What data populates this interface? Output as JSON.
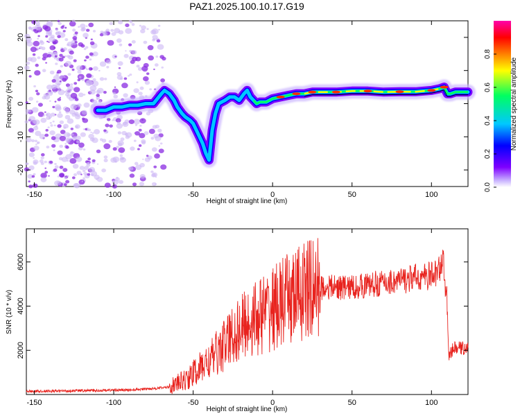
{
  "title": "PAZ1.2025.100.10.17.G19",
  "chart_data": [
    {
      "type": "heatmap",
      "xlabel": "Height of straight line (km)",
      "ylabel": "Frequency (Hz)",
      "xlim": [
        -155,
        123
      ],
      "ylim": [
        -25,
        25
      ],
      "xticks": [
        -150,
        -100,
        -50,
        0,
        50,
        100
      ],
      "yticks": [
        -20,
        -10,
        0,
        10,
        20
      ],
      "colorbar": {
        "label": "Normalized spectral amplitude",
        "range": [
          0,
          1
        ],
        "ticks": [
          0.0,
          0.2,
          0.4,
          0.6,
          0.8
        ],
        "colormap": [
          "#c9b3ff",
          "#7f00ff",
          "#0000ff",
          "#00c8ff",
          "#00ff60",
          "#ffff00",
          "#ff8000",
          "#ff0000",
          "#ff00aa"
        ]
      },
      "ridge": {
        "x": [
          -110,
          -105,
          -100,
          -95,
          -90,
          -85,
          -80,
          -75,
          -70,
          -68,
          -65,
          -62,
          -60,
          -57,
          -55,
          -52,
          -50,
          -48,
          -46,
          -44,
          -42,
          -40,
          -38,
          -36,
          -34,
          -32,
          -30,
          -27,
          -24,
          -21,
          -18,
          -16,
          -14,
          -12,
          -10,
          -8,
          -6,
          -4,
          -2,
          0,
          5,
          10,
          15,
          20,
          25,
          30,
          40,
          50,
          60,
          70,
          80,
          90,
          100,
          105,
          108,
          110,
          112,
          115,
          123
        ],
        "y": [
          -2,
          -2,
          -1,
          -1,
          -0.5,
          -0.5,
          0,
          0,
          3,
          4,
          3,
          1,
          -1,
          -3,
          -4,
          -5,
          -6,
          -8,
          -10,
          -12,
          -15,
          -17,
          -8,
          -3,
          0,
          0.5,
          1,
          2,
          2,
          1,
          3,
          4,
          2,
          1,
          0,
          0.5,
          0.5,
          0.5,
          1,
          1.5,
          2,
          2.5,
          3,
          3,
          3.5,
          3.5,
          3.5,
          3.8,
          3.8,
          3.5,
          3.6,
          3.6,
          4,
          4.5,
          5,
          3,
          3,
          3.5,
          3.5
        ]
      }
    },
    {
      "type": "line",
      "xlabel": "Height of straight line (km)",
      "ylabel": "SNR (10 * v/v)",
      "xlim": [
        -155,
        123
      ],
      "ylim": [
        0,
        7500
      ],
      "xticks": [
        -150,
        -100,
        -50,
        0,
        50,
        100
      ],
      "yticks": [
        2000,
        4000,
        6000
      ],
      "series": [
        {
          "color": "#e8231e",
          "x": [
            -155,
            -140,
            -125,
            -110,
            -100,
            -90,
            -80,
            -70,
            -65,
            -60,
            -55,
            -52,
            -50,
            -47,
            -45,
            -42,
            -40,
            -37,
            -35,
            -32,
            -30,
            -27,
            -25,
            -22,
            -20,
            -17,
            -15,
            -12,
            -10,
            -7,
            -5,
            -2,
            0,
            3,
            5,
            8,
            10,
            13,
            15,
            18,
            20,
            23,
            25,
            30,
            35,
            40,
            45,
            50,
            55,
            60,
            65,
            70,
            75,
            80,
            85,
            90,
            95,
            100,
            103,
            105,
            107,
            108,
            109,
            110,
            111,
            113,
            115,
            118,
            123
          ],
          "y": [
            150,
            150,
            170,
            180,
            200,
            200,
            250,
            300,
            350,
            500,
            650,
            800,
            950,
            1100,
            1250,
            1400,
            1500,
            1700,
            1900,
            2100,
            2300,
            2500,
            2700,
            2900,
            3000,
            3200,
            3300,
            3400,
            3500,
            3600,
            3700,
            3800,
            3900,
            4000,
            4100,
            4200,
            4300,
            4400,
            4500,
            4600,
            4700,
            4750,
            4800,
            4850,
            4850,
            4850,
            4850,
            4850,
            4900,
            4950,
            5000,
            5050,
            5100,
            5150,
            5200,
            5300,
            5300,
            5400,
            5500,
            5700,
            6200,
            5500,
            5000,
            4000,
            1700,
            2000,
            2100,
            2100,
            2100
          ]
        }
      ]
    }
  ]
}
